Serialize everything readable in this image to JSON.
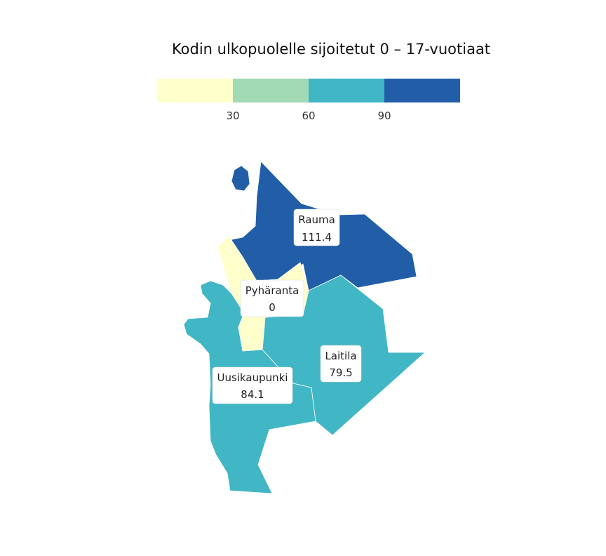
{
  "title": "Kodin ulkopuolelle sijoitetut 0 – 17-vuotiaat",
  "legend": {
    "bins": [
      {
        "color": "#ffffcc"
      },
      {
        "color": "#a1dab4"
      },
      {
        "color": "#41b6c4"
      },
      {
        "color": "#225ea8"
      }
    ],
    "ticks": [
      "30",
      "60",
      "90"
    ]
  },
  "regions": [
    {
      "id": "rauma",
      "name": "Rauma",
      "value": "111.4",
      "color": "#225ea8"
    },
    {
      "id": "pyharanta",
      "name": "Pyhäranta",
      "value": "0",
      "color": "#ffffcc"
    },
    {
      "id": "laitila",
      "name": "Laitila",
      "value": "79.5",
      "color": "#41b6c4"
    },
    {
      "id": "uusikaupunki",
      "name": "Uusikaupunki",
      "value": "84.1",
      "color": "#41b6c4"
    }
  ]
}
